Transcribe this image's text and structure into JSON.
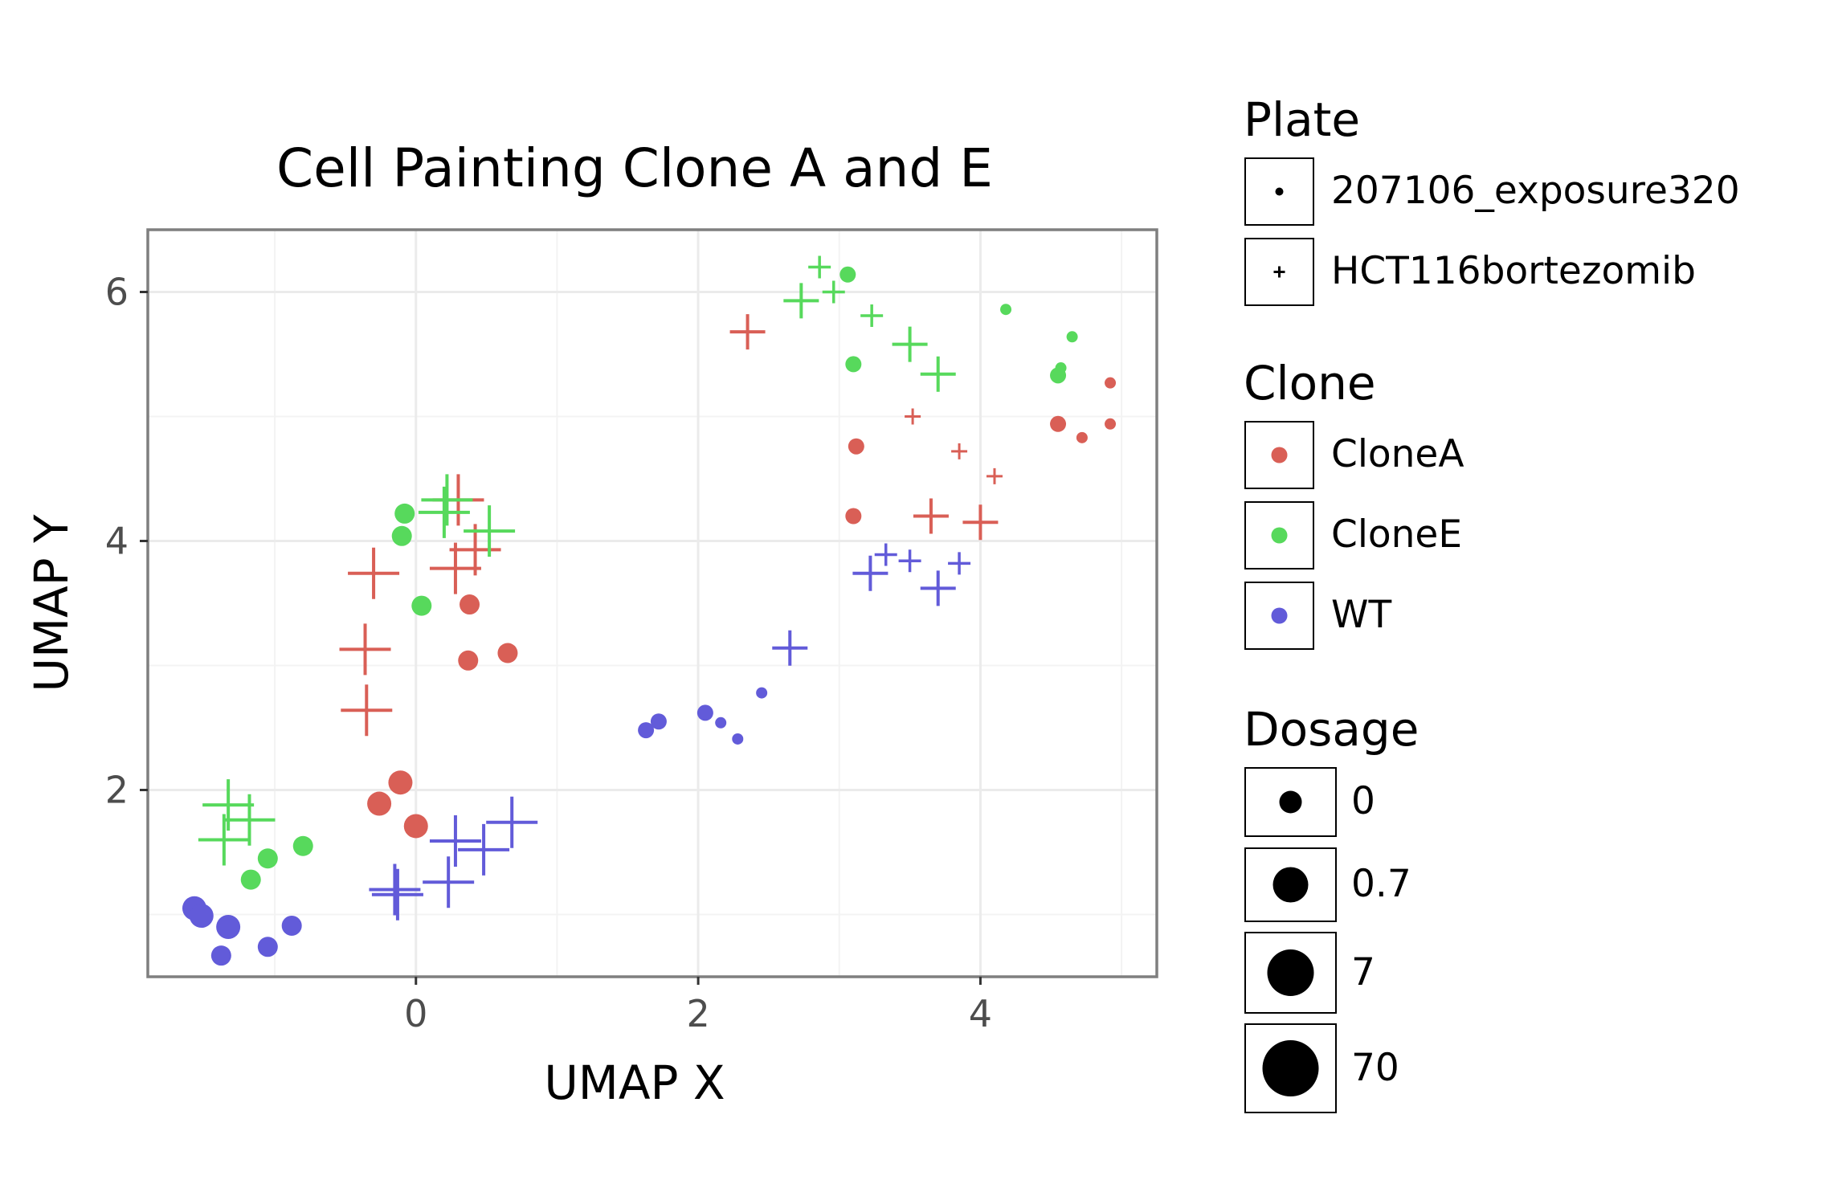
{
  "chart_data": {
    "type": "scatter",
    "title": "Cell Painting Clone A and E",
    "xlabel": "UMAP X",
    "ylabel": "UMAP Y",
    "xlim": [
      -1.9,
      5.25
    ],
    "ylim": [
      0.5,
      6.5
    ],
    "x_ticks": [
      0,
      2,
      4
    ],
    "y_ticks": [
      2,
      4,
      6
    ],
    "grid": true,
    "legend_placement": "right",
    "colors": {
      "CloneA": "#d95f56",
      "CloneE": "#57d95c",
      "WT": "#625bd9"
    },
    "legends": {
      "plate": {
        "title": "Plate",
        "entries": [
          "207106_exposure320",
          "HCT116bortezomib"
        ]
      },
      "clone": {
        "title": "Clone",
        "entries": [
          "CloneA",
          "CloneE",
          "WT"
        ]
      },
      "dosage": {
        "title": "Dosage",
        "entries": [
          "0",
          "0.7",
          "7",
          "70"
        ]
      }
    },
    "points": [
      {
        "x": 2.35,
        "y": 5.68,
        "clone": "CloneA",
        "plate": "HCT116bortezomib",
        "dose": 2
      },
      {
        "x": 3.52,
        "y": 5.0,
        "clone": "CloneA",
        "plate": "HCT116bortezomib",
        "dose": 0
      },
      {
        "x": 3.85,
        "y": 4.72,
        "clone": "CloneA",
        "plate": "HCT116bortezomib",
        "dose": 0
      },
      {
        "x": 4.1,
        "y": 4.52,
        "clone": "CloneA",
        "plate": "HCT116bortezomib",
        "dose": 0
      },
      {
        "x": 3.65,
        "y": 4.2,
        "clone": "CloneA",
        "plate": "HCT116bortezomib",
        "dose": 2
      },
      {
        "x": 4.0,
        "y": 4.15,
        "clone": "CloneA",
        "plate": "HCT116bortezomib",
        "dose": 2
      },
      {
        "x": 3.12,
        "y": 4.76,
        "clone": "CloneA",
        "plate": "207106_exposure320",
        "dose": 1
      },
      {
        "x": 3.1,
        "y": 4.2,
        "clone": "CloneA",
        "plate": "207106_exposure320",
        "dose": 1
      },
      {
        "x": 4.55,
        "y": 4.94,
        "clone": "CloneA",
        "plate": "207106_exposure320",
        "dose": 1
      },
      {
        "x": 4.72,
        "y": 4.83,
        "clone": "CloneA",
        "plate": "207106_exposure320",
        "dose": 0
      },
      {
        "x": 4.92,
        "y": 4.94,
        "clone": "CloneA",
        "plate": "207106_exposure320",
        "dose": 0
      },
      {
        "x": 4.92,
        "y": 5.27,
        "clone": "CloneA",
        "plate": "207106_exposure320",
        "dose": 0
      },
      {
        "x": 0.3,
        "y": 4.33,
        "clone": "CloneA",
        "plate": "HCT116bortezomib",
        "dose": 3
      },
      {
        "x": 0.42,
        "y": 3.93,
        "clone": "CloneA",
        "plate": "HCT116bortezomib",
        "dose": 3
      },
      {
        "x": 0.28,
        "y": 3.78,
        "clone": "CloneA",
        "plate": "HCT116bortezomib",
        "dose": 3
      },
      {
        "x": -0.3,
        "y": 3.74,
        "clone": "CloneA",
        "plate": "HCT116bortezomib",
        "dose": 3
      },
      {
        "x": -0.36,
        "y": 3.13,
        "clone": "CloneA",
        "plate": "HCT116bortezomib",
        "dose": 3
      },
      {
        "x": -0.35,
        "y": 2.64,
        "clone": "CloneA",
        "plate": "HCT116bortezomib",
        "dose": 3
      },
      {
        "x": 0.38,
        "y": 3.49,
        "clone": "CloneA",
        "plate": "207106_exposure320",
        "dose": 2
      },
      {
        "x": 0.37,
        "y": 3.04,
        "clone": "CloneA",
        "plate": "207106_exposure320",
        "dose": 2
      },
      {
        "x": 0.65,
        "y": 3.1,
        "clone": "CloneA",
        "plate": "207106_exposure320",
        "dose": 2
      },
      {
        "x": -0.11,
        "y": 2.06,
        "clone": "CloneA",
        "plate": "207106_exposure320",
        "dose": 3
      },
      {
        "x": -0.26,
        "y": 1.89,
        "clone": "CloneA",
        "plate": "207106_exposure320",
        "dose": 3
      },
      {
        "x": 0.0,
        "y": 1.71,
        "clone": "CloneA",
        "plate": "207106_exposure320",
        "dose": 3
      },
      {
        "x": 2.86,
        "y": 6.2,
        "clone": "CloneE",
        "plate": "HCT116bortezomib",
        "dose": 1
      },
      {
        "x": 2.96,
        "y": 6.0,
        "clone": "CloneE",
        "plate": "HCT116bortezomib",
        "dose": 1
      },
      {
        "x": 2.73,
        "y": 5.93,
        "clone": "CloneE",
        "plate": "HCT116bortezomib",
        "dose": 2
      },
      {
        "x": 3.23,
        "y": 5.81,
        "clone": "CloneE",
        "plate": "HCT116bortezomib",
        "dose": 1
      },
      {
        "x": 3.5,
        "y": 5.58,
        "clone": "CloneE",
        "plate": "HCT116bortezomib",
        "dose": 2
      },
      {
        "x": 3.7,
        "y": 5.34,
        "clone": "CloneE",
        "plate": "HCT116bortezomib",
        "dose": 2
      },
      {
        "x": 3.06,
        "y": 6.14,
        "clone": "CloneE",
        "plate": "207106_exposure320",
        "dose": 1
      },
      {
        "x": 3.1,
        "y": 5.42,
        "clone": "CloneE",
        "plate": "207106_exposure320",
        "dose": 1
      },
      {
        "x": 4.18,
        "y": 5.86,
        "clone": "CloneE",
        "plate": "207106_exposure320",
        "dose": 0
      },
      {
        "x": 4.65,
        "y": 5.64,
        "clone": "CloneE",
        "plate": "207106_exposure320",
        "dose": 0
      },
      {
        "x": 4.57,
        "y": 5.39,
        "clone": "CloneE",
        "plate": "207106_exposure320",
        "dose": 0
      },
      {
        "x": 4.55,
        "y": 5.33,
        "clone": "CloneE",
        "plate": "207106_exposure320",
        "dose": 1
      },
      {
        "x": 0.22,
        "y": 4.33,
        "clone": "CloneE",
        "plate": "HCT116bortezomib",
        "dose": 3
      },
      {
        "x": 0.2,
        "y": 4.23,
        "clone": "CloneE",
        "plate": "HCT116bortezomib",
        "dose": 3
      },
      {
        "x": 0.52,
        "y": 4.08,
        "clone": "CloneE",
        "plate": "HCT116bortezomib",
        "dose": 3
      },
      {
        "x": -0.08,
        "y": 4.22,
        "clone": "CloneE",
        "plate": "207106_exposure320",
        "dose": 2
      },
      {
        "x": -0.1,
        "y": 4.04,
        "clone": "CloneE",
        "plate": "207106_exposure320",
        "dose": 2
      },
      {
        "x": 0.04,
        "y": 3.48,
        "clone": "CloneE",
        "plate": "207106_exposure320",
        "dose": 2
      },
      {
        "x": -1.33,
        "y": 1.88,
        "clone": "CloneE",
        "plate": "HCT116bortezomib",
        "dose": 3
      },
      {
        "x": -1.18,
        "y": 1.76,
        "clone": "CloneE",
        "plate": "HCT116bortezomib",
        "dose": 3
      },
      {
        "x": -1.36,
        "y": 1.6,
        "clone": "CloneE",
        "plate": "HCT116bortezomib",
        "dose": 3
      },
      {
        "x": -0.8,
        "y": 1.55,
        "clone": "CloneE",
        "plate": "207106_exposure320",
        "dose": 2
      },
      {
        "x": -1.05,
        "y": 1.45,
        "clone": "CloneE",
        "plate": "207106_exposure320",
        "dose": 2
      },
      {
        "x": -1.17,
        "y": 1.28,
        "clone": "CloneE",
        "plate": "207106_exposure320",
        "dose": 2
      },
      {
        "x": 3.33,
        "y": 3.89,
        "clone": "WT",
        "plate": "HCT116bortezomib",
        "dose": 1
      },
      {
        "x": 3.5,
        "y": 3.84,
        "clone": "WT",
        "plate": "HCT116bortezomib",
        "dose": 1
      },
      {
        "x": 3.85,
        "y": 3.82,
        "clone": "WT",
        "plate": "HCT116bortezomib",
        "dose": 1
      },
      {
        "x": 3.22,
        "y": 3.74,
        "clone": "WT",
        "plate": "HCT116bortezomib",
        "dose": 2
      },
      {
        "x": 3.7,
        "y": 3.62,
        "clone": "WT",
        "plate": "HCT116bortezomib",
        "dose": 2
      },
      {
        "x": 2.65,
        "y": 3.14,
        "clone": "WT",
        "plate": "HCT116bortezomib",
        "dose": 2
      },
      {
        "x": 2.45,
        "y": 2.78,
        "clone": "WT",
        "plate": "207106_exposure320",
        "dose": 0
      },
      {
        "x": 2.05,
        "y": 2.62,
        "clone": "WT",
        "plate": "207106_exposure320",
        "dose": 1
      },
      {
        "x": 2.16,
        "y": 2.54,
        "clone": "WT",
        "plate": "207106_exposure320",
        "dose": 0
      },
      {
        "x": 2.28,
        "y": 2.41,
        "clone": "WT",
        "plate": "207106_exposure320",
        "dose": 0
      },
      {
        "x": 1.72,
        "y": 2.55,
        "clone": "WT",
        "plate": "207106_exposure320",
        "dose": 1
      },
      {
        "x": 1.63,
        "y": 2.48,
        "clone": "WT",
        "plate": "207106_exposure320",
        "dose": 1
      },
      {
        "x": 0.68,
        "y": 1.74,
        "clone": "WT",
        "plate": "HCT116bortezomib",
        "dose": 3
      },
      {
        "x": 0.28,
        "y": 1.59,
        "clone": "WT",
        "plate": "HCT116bortezomib",
        "dose": 3
      },
      {
        "x": 0.48,
        "y": 1.52,
        "clone": "WT",
        "plate": "HCT116bortezomib",
        "dose": 3
      },
      {
        "x": 0.23,
        "y": 1.26,
        "clone": "WT",
        "plate": "HCT116bortezomib",
        "dose": 3
      },
      {
        "x": -0.15,
        "y": 1.2,
        "clone": "WT",
        "plate": "HCT116bortezomib",
        "dose": 3
      },
      {
        "x": -0.13,
        "y": 1.16,
        "clone": "WT",
        "plate": "HCT116bortezomib",
        "dose": 3
      },
      {
        "x": -1.57,
        "y": 1.05,
        "clone": "WT",
        "plate": "207106_exposure320",
        "dose": 3
      },
      {
        "x": -1.52,
        "y": 0.99,
        "clone": "WT",
        "plate": "207106_exposure320",
        "dose": 3
      },
      {
        "x": -1.33,
        "y": 0.9,
        "clone": "WT",
        "plate": "207106_exposure320",
        "dose": 3
      },
      {
        "x": -0.88,
        "y": 0.91,
        "clone": "WT",
        "plate": "207106_exposure320",
        "dose": 2
      },
      {
        "x": -1.05,
        "y": 0.74,
        "clone": "WT",
        "plate": "207106_exposure320",
        "dose": 2
      },
      {
        "x": -1.38,
        "y": 0.67,
        "clone": "WT",
        "plate": "207106_exposure320",
        "dose": 2
      }
    ]
  }
}
